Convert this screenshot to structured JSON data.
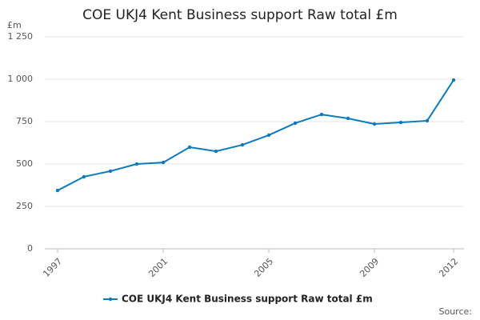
{
  "chart_data": {
    "type": "line",
    "title": "COE UKJ4 Kent Business support Raw total £m",
    "y_unit": "£m",
    "source_label": "Source:",
    "x": [
      1997,
      1998,
      1999,
      2000,
      2001,
      2002,
      2003,
      2004,
      2005,
      2006,
      2007,
      2008,
      2009,
      2010,
      2011,
      2012
    ],
    "series": [
      {
        "name": "COE UKJ4 Kent Business support Raw total £m",
        "color": "#0b7bbd",
        "values": [
          344,
          425,
          458,
          500,
          509,
          599,
          575,
          613,
          670,
          741,
          792,
          769,
          736,
          745,
          755,
          995
        ]
      }
    ],
    "xlim": [
      1997,
      2012
    ],
    "xticks": [
      1997,
      2001,
      2005,
      2009,
      2012
    ],
    "ylim": [
      0,
      1250
    ],
    "yticks": [
      0,
      250,
      500,
      750,
      {
        "value": 1000,
        "label": "1 000"
      },
      {
        "value": 1250,
        "label": "1 250"
      }
    ],
    "grid": true,
    "legend": "bottom"
  }
}
